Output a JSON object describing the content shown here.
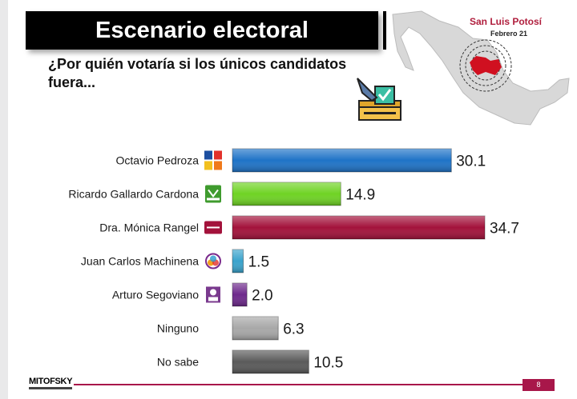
{
  "header": {
    "title": "Escenario electoral",
    "question": "¿Por quién votaría si los únicos candidatos fuera..."
  },
  "map_box": {
    "region": "San Luis Potosí",
    "date": "Febrero 21"
  },
  "chart_data": {
    "type": "bar",
    "orientation": "horizontal",
    "title": "",
    "xlabel": "",
    "ylabel": "",
    "grid": false,
    "categories": [
      "Octavio Pedroza",
      "Ricardo Gallardo Cardona",
      "Dra. Mónica Rangel",
      "Juan Carlos Machinena",
      "Arturo Segoviano",
      "Ninguno",
      "No sabe"
    ],
    "values": [
      30.1,
      14.9,
      34.7,
      1.5,
      2.0,
      6.3,
      10.5
    ],
    "value_labels": [
      "30.1",
      "14.9",
      "34.7",
      "1.5",
      "2.0",
      "6.3",
      "10.5"
    ],
    "colors": [
      "#1f73c7",
      "#6fd324",
      "#a3123b",
      "#3aa3cc",
      "#6e2a8c",
      "#a8a8a8",
      "#5a5a5a"
    ],
    "party_icons": [
      "coalition-pan-pri-prd-icon",
      "verde-party-icon",
      "morena-party-icon",
      "pes-party-icon",
      "independent-candidate-icon",
      "",
      ""
    ],
    "xlim": [
      0,
      40
    ]
  },
  "footer": {
    "logo": "MITOFSKY",
    "page": "8"
  }
}
